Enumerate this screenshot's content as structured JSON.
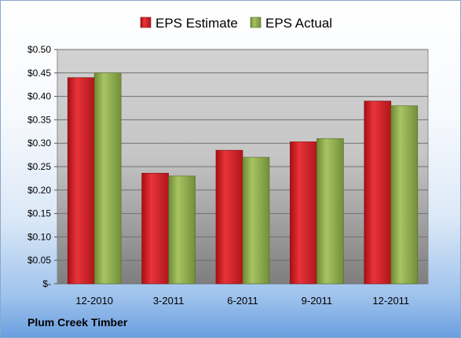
{
  "chart_data": {
    "type": "bar",
    "categories": [
      "12-2010",
      "3-2011",
      "6-2011",
      "9-2011",
      "12-2011"
    ],
    "series": [
      {
        "name": "EPS Estimate",
        "values": [
          0.44,
          0.236,
          0.285,
          0.303,
          0.39
        ],
        "color": "#c8161c"
      },
      {
        "name": "EPS Actual",
        "values": [
          0.45,
          0.23,
          0.27,
          0.31,
          0.38
        ],
        "color": "#8cab4a"
      }
    ],
    "ylim": [
      0,
      0.5
    ],
    "yticks": [
      0,
      0.05,
      0.1,
      0.15,
      0.2,
      0.25,
      0.3,
      0.35,
      0.4,
      0.45,
      0.5
    ],
    "ytick_labels": [
      "$-",
      "$0.05",
      "$0.10",
      "$0.15",
      "$0.20",
      "$0.25",
      "$0.30",
      "$0.35",
      "$0.40",
      "$0.45",
      "$0.50"
    ],
    "grid": true,
    "legend_position": "top-center"
  },
  "footer": {
    "company": "Plum Creek Timber"
  }
}
